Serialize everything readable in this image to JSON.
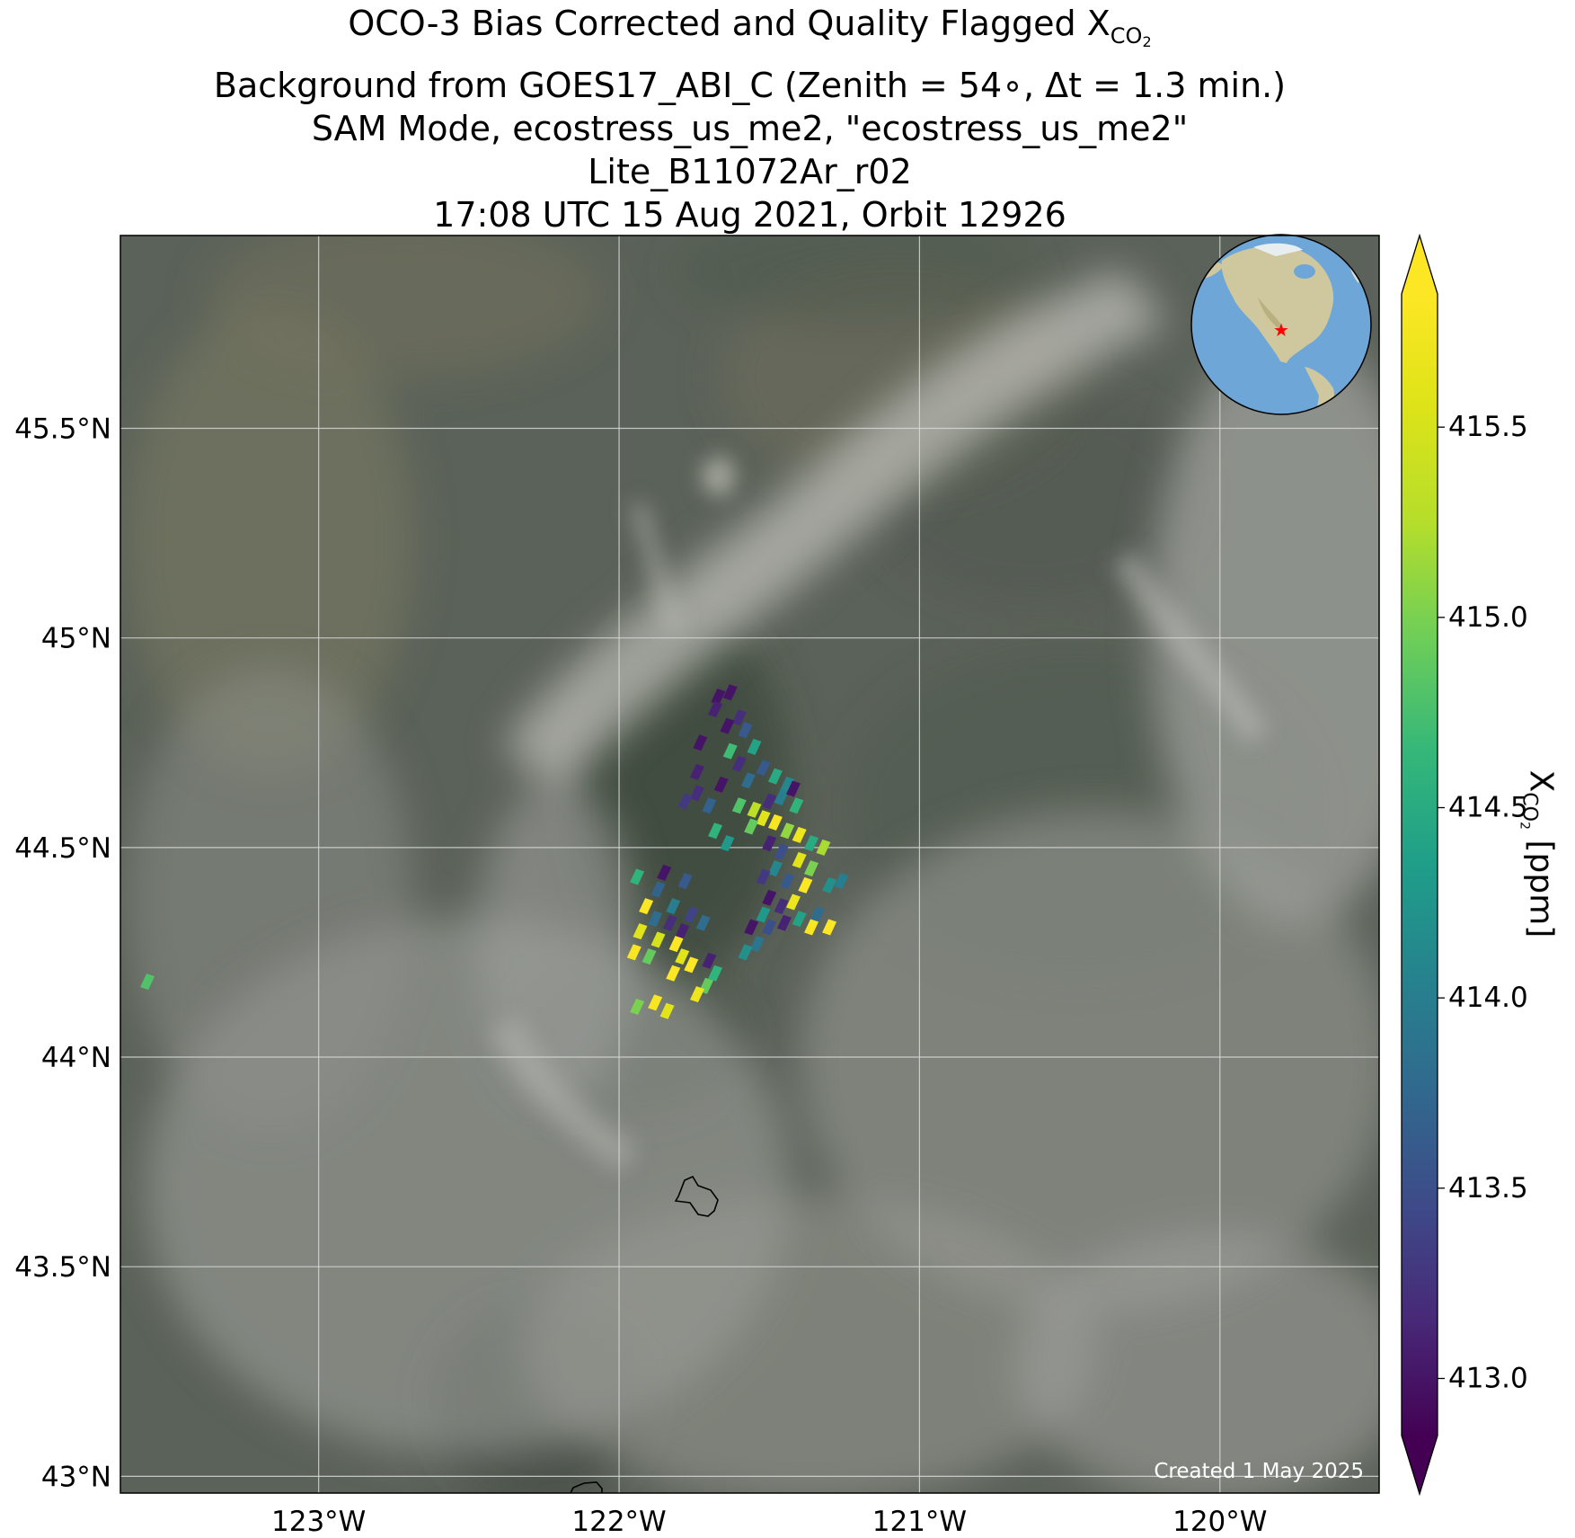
{
  "title": {
    "line1_prefix": "OCO-3 Bias Corrected and Quality Flagged X",
    "line1_sub": "CO",
    "line1_subsub": "2",
    "line2": "Background from GOES17_ABI_C (Zenith = 54∘, Δt =  1.3 min.)",
    "line3": "SAM Mode, ecostress_us_me2, \"ecostress_us_me2\"",
    "line4": "Lite_B11072Ar_r02",
    "line5": "17:08 UTC 15 Aug 2021, Orbit 12926"
  },
  "map": {
    "lon_range": [
      -123.66,
      -119.47
    ],
    "lat_range": [
      42.96,
      45.96
    ],
    "lon_ticks": [
      {
        "value": -123,
        "label": "123°W"
      },
      {
        "value": -122,
        "label": "122°W"
      },
      {
        "value": -121,
        "label": "121°W"
      },
      {
        "value": -120,
        "label": "120°W"
      }
    ],
    "lat_ticks": [
      {
        "value": 43.0,
        "label": "43°N"
      },
      {
        "value": 43.5,
        "label": "43.5°N"
      },
      {
        "value": 44.0,
        "label": "44°N"
      },
      {
        "value": 44.5,
        "label": "44.5°N"
      },
      {
        "value": 45.0,
        "label": "45°N"
      },
      {
        "value": 45.5,
        "label": "45.5°N"
      }
    ],
    "gridlines": true,
    "background_colors": {
      "land": "#5d6459",
      "smoke": "#a7a8a4",
      "dark_forest": "#3e4a40"
    },
    "inset_globe": {
      "position": "top-right",
      "ocean": "#6ea6d8",
      "land": "#c9c39a",
      "marker_color": "#ff0000",
      "marker": "star"
    },
    "created_text": "Created 1 May 2025"
  },
  "colorbar": {
    "colormap": "viridis",
    "vmin": 412.85,
    "vmax": 415.85,
    "extend": "both",
    "ticks": [
      413.0,
      413.5,
      414.0,
      414.5,
      415.0,
      415.5
    ],
    "tick_labels": [
      "413.0",
      "413.5",
      "414.0",
      "414.5",
      "415.0",
      "415.5"
    ],
    "label_prefix": "X",
    "label_sub": "CO",
    "label_subsub": "2",
    "label_suffix": " [ppm]"
  },
  "chart_data": {
    "type": "scatter",
    "description_units": "longitude (deg E), latitude (deg N), XCO2 (ppm)",
    "points": [
      {
        "lon": -121.67,
        "lat": 44.86,
        "xco2": 413.0
      },
      {
        "lon": -121.63,
        "lat": 44.87,
        "xco2": 413.0
      },
      {
        "lon": -121.68,
        "lat": 44.83,
        "xco2": 413.1
      },
      {
        "lon": -121.6,
        "lat": 44.81,
        "xco2": 413.2
      },
      {
        "lon": -121.58,
        "lat": 44.78,
        "xco2": 413.6
      },
      {
        "lon": -121.64,
        "lat": 44.79,
        "xco2": 413.0
      },
      {
        "lon": -121.73,
        "lat": 44.75,
        "xco2": 413.0
      },
      {
        "lon": -121.63,
        "lat": 44.73,
        "xco2": 414.7
      },
      {
        "lon": -121.55,
        "lat": 44.74,
        "xco2": 414.4
      },
      {
        "lon": -121.6,
        "lat": 44.7,
        "xco2": 413.2
      },
      {
        "lon": -121.52,
        "lat": 44.69,
        "xco2": 413.6
      },
      {
        "lon": -121.74,
        "lat": 44.68,
        "xco2": 413.1
      },
      {
        "lon": -121.66,
        "lat": 44.65,
        "xco2": 413.0
      },
      {
        "lon": -121.57,
        "lat": 44.66,
        "xco2": 413.8
      },
      {
        "lon": -121.48,
        "lat": 44.67,
        "xco2": 414.5
      },
      {
        "lon": -121.44,
        "lat": 44.65,
        "xco2": 414.1
      },
      {
        "lon": -121.74,
        "lat": 44.63,
        "xco2": 413.2
      },
      {
        "lon": -121.7,
        "lat": 44.6,
        "xco2": 413.7
      },
      {
        "lon": -121.78,
        "lat": 44.61,
        "xco2": 413.3
      },
      {
        "lon": -121.6,
        "lat": 44.6,
        "xco2": 414.8
      },
      {
        "lon": -121.55,
        "lat": 44.59,
        "xco2": 415.3
      },
      {
        "lon": -121.5,
        "lat": 44.61,
        "xco2": 413.2
      },
      {
        "lon": -121.46,
        "lat": 44.62,
        "xco2": 414.0
      },
      {
        "lon": -121.41,
        "lat": 44.6,
        "xco2": 414.6
      },
      {
        "lon": -121.42,
        "lat": 44.64,
        "xco2": 413.0
      },
      {
        "lon": -121.52,
        "lat": 44.57,
        "xco2": 415.6
      },
      {
        "lon": -121.48,
        "lat": 44.56,
        "xco2": 415.8
      },
      {
        "lon": -121.56,
        "lat": 44.55,
        "xco2": 414.9
      },
      {
        "lon": -121.44,
        "lat": 44.54,
        "xco2": 415.1
      },
      {
        "lon": -121.4,
        "lat": 44.53,
        "xco2": 415.7
      },
      {
        "lon": -121.36,
        "lat": 44.51,
        "xco2": 414.5
      },
      {
        "lon": -121.32,
        "lat": 44.5,
        "xco2": 415.2
      },
      {
        "lon": -121.68,
        "lat": 44.54,
        "xco2": 414.6
      },
      {
        "lon": -121.64,
        "lat": 44.51,
        "xco2": 414.3
      },
      {
        "lon": -121.5,
        "lat": 44.51,
        "xco2": 413.1
      },
      {
        "lon": -121.46,
        "lat": 44.49,
        "xco2": 413.5
      },
      {
        "lon": -121.4,
        "lat": 44.47,
        "xco2": 415.6
      },
      {
        "lon": -121.36,
        "lat": 44.45,
        "xco2": 415.0
      },
      {
        "lon": -121.48,
        "lat": 44.45,
        "xco2": 414.1
      },
      {
        "lon": -121.52,
        "lat": 44.43,
        "xco2": 413.3
      },
      {
        "lon": -121.44,
        "lat": 44.42,
        "xco2": 413.6
      },
      {
        "lon": -121.38,
        "lat": 44.41,
        "xco2": 415.9
      },
      {
        "lon": -121.3,
        "lat": 44.41,
        "xco2": 414.2
      },
      {
        "lon": -121.26,
        "lat": 44.42,
        "xco2": 414.0
      },
      {
        "lon": -121.5,
        "lat": 44.38,
        "xco2": 413.0
      },
      {
        "lon": -121.46,
        "lat": 44.36,
        "xco2": 413.2
      },
      {
        "lon": -121.42,
        "lat": 44.37,
        "xco2": 415.7
      },
      {
        "lon": -121.4,
        "lat": 44.33,
        "xco2": 414.4
      },
      {
        "lon": -121.34,
        "lat": 44.34,
        "xco2": 413.8
      },
      {
        "lon": -121.36,
        "lat": 44.31,
        "xco2": 415.8
      },
      {
        "lon": -121.3,
        "lat": 44.31,
        "xco2": 415.9
      },
      {
        "lon": -121.52,
        "lat": 44.34,
        "xco2": 414.3
      },
      {
        "lon": -121.56,
        "lat": 44.31,
        "xco2": 413.0
      },
      {
        "lon": -121.5,
        "lat": 44.31,
        "xco2": 413.5
      },
      {
        "lon": -121.45,
        "lat": 44.32,
        "xco2": 413.1
      },
      {
        "lon": -121.54,
        "lat": 44.27,
        "xco2": 413.9
      },
      {
        "lon": -121.58,
        "lat": 44.25,
        "xco2": 414.2
      },
      {
        "lon": -121.94,
        "lat": 44.43,
        "xco2": 414.6
      },
      {
        "lon": -121.85,
        "lat": 44.44,
        "xco2": 413.0
      },
      {
        "lon": -121.87,
        "lat": 44.4,
        "xco2": 413.7
      },
      {
        "lon": -121.78,
        "lat": 44.42,
        "xco2": 413.6
      },
      {
        "lon": -121.91,
        "lat": 44.36,
        "xco2": 415.9
      },
      {
        "lon": -121.82,
        "lat": 44.36,
        "xco2": 414.0
      },
      {
        "lon": -121.76,
        "lat": 44.34,
        "xco2": 413.4
      },
      {
        "lon": -121.88,
        "lat": 44.33,
        "xco2": 413.8
      },
      {
        "lon": -121.83,
        "lat": 44.32,
        "xco2": 413.2
      },
      {
        "lon": -121.79,
        "lat": 44.3,
        "xco2": 413.1
      },
      {
        "lon": -121.72,
        "lat": 44.32,
        "xco2": 413.8
      },
      {
        "lon": -121.93,
        "lat": 44.3,
        "xco2": 415.6
      },
      {
        "lon": -121.87,
        "lat": 44.28,
        "xco2": 415.5
      },
      {
        "lon": -121.81,
        "lat": 44.27,
        "xco2": 415.9
      },
      {
        "lon": -121.95,
        "lat": 44.25,
        "xco2": 415.8
      },
      {
        "lon": -121.9,
        "lat": 44.24,
        "xco2": 414.9
      },
      {
        "lon": -121.79,
        "lat": 44.24,
        "xco2": 415.6
      },
      {
        "lon": -121.76,
        "lat": 44.22,
        "xco2": 415.9
      },
      {
        "lon": -121.7,
        "lat": 44.23,
        "xco2": 413.1
      },
      {
        "lon": -121.68,
        "lat": 44.2,
        "xco2": 414.6
      },
      {
        "lon": -121.82,
        "lat": 44.2,
        "xco2": 415.9
      },
      {
        "lon": -121.71,
        "lat": 44.17,
        "xco2": 414.9
      },
      {
        "lon": -121.74,
        "lat": 44.15,
        "xco2": 415.7
      },
      {
        "lon": -121.88,
        "lat": 44.13,
        "xco2": 415.8
      },
      {
        "lon": -121.94,
        "lat": 44.12,
        "xco2": 415.0
      },
      {
        "lon": -121.84,
        "lat": 44.11,
        "xco2": 415.6
      },
      {
        "lon": -123.57,
        "lat": 44.18,
        "xco2": 414.8
      }
    ]
  }
}
